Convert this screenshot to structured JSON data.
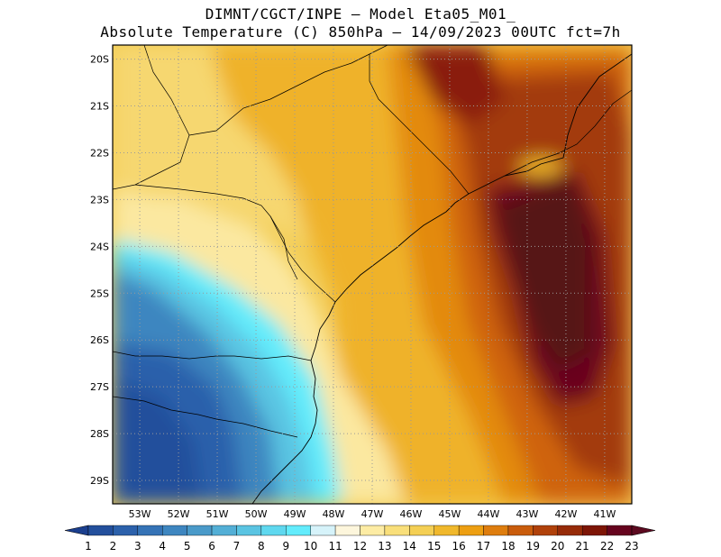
{
  "header": {
    "line1": "DIMNT/CGCT/INPE –  Model Eta05_M01_",
    "line2": "Absolute Temperature (C) 850hPa –  14/09/2023 00UTC fct=7h"
  },
  "map": {
    "lat_labels": [
      "20S",
      "21S",
      "22S",
      "23S",
      "24S",
      "25S",
      "26S",
      "27S",
      "28S",
      "29S"
    ],
    "lon_labels": [
      "53W",
      "52W",
      "51W",
      "50W",
      "49W",
      "48W",
      "47W",
      "46W",
      "45W",
      "44W",
      "43W",
      "42W",
      "41W"
    ],
    "lat_range": [
      -29.5,
      -19.7
    ],
    "lon_range": [
      -53.7,
      -40.3
    ],
    "grid": true
  },
  "colorbar": {
    "labels": [
      "1",
      "2",
      "3",
      "4",
      "5",
      "6",
      "7",
      "8",
      "9",
      "10",
      "11",
      "12",
      "13",
      "14",
      "15",
      "16",
      "17",
      "18",
      "19",
      "20",
      "21",
      "22",
      "23"
    ],
    "colors": [
      "#1b3f8e",
      "#234f9c",
      "#2c61ab",
      "#3573b6",
      "#3e86c0",
      "#4a9ac9",
      "#53afd6",
      "#5ac4e2",
      "#5fd8ef",
      "#63ecfc",
      "#d6f3fa",
      "#fdf6dc",
      "#fdeca4",
      "#f9df7a",
      "#f4cf54",
      "#f0b82c",
      "#ed9f12",
      "#de7d0e",
      "#c95c0c",
      "#b0410a",
      "#962b08",
      "#7d1506",
      "#66041e",
      "#5c0a20"
    ]
  }
}
